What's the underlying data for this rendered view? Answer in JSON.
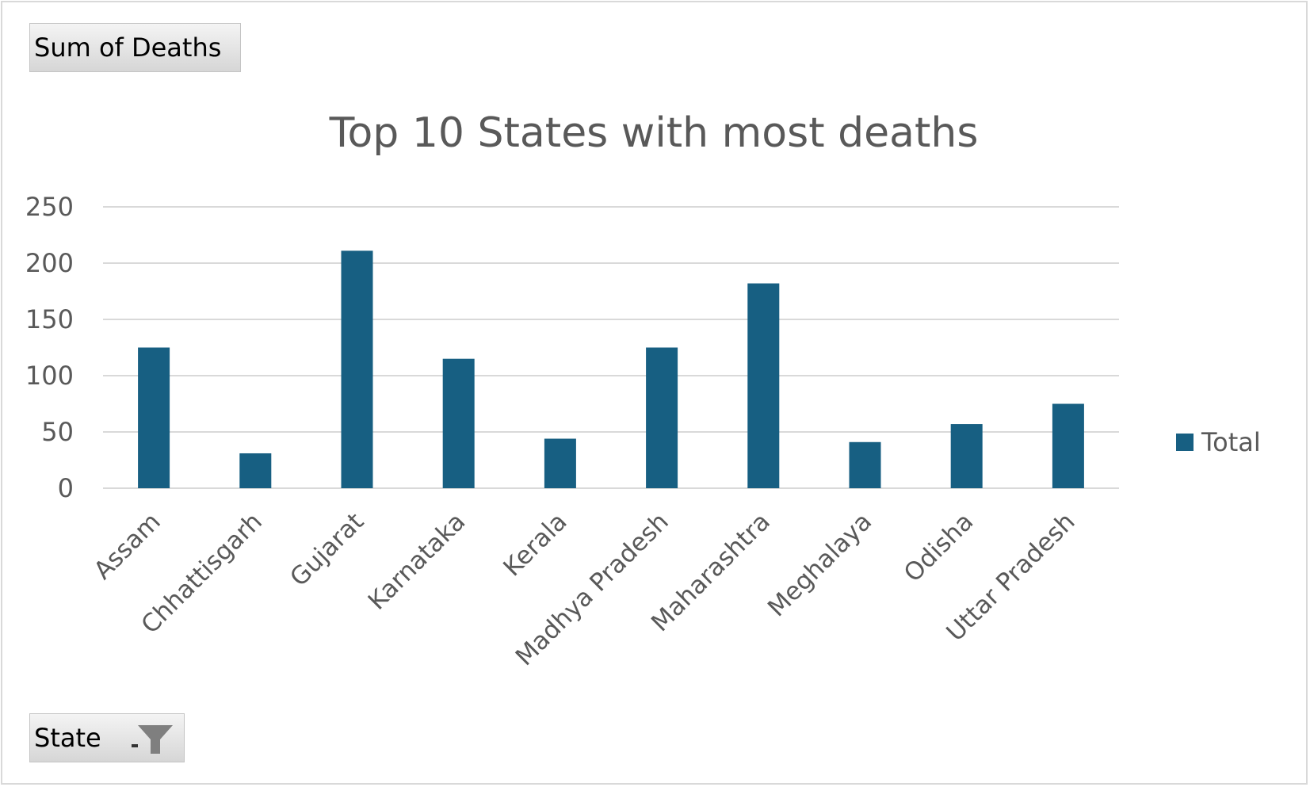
{
  "buttons": {
    "values_field": "Sum of Deaths",
    "axis_field": "State"
  },
  "colors": {
    "bar": "#175f82",
    "gridline": "#d9d9d9",
    "text": "#595959",
    "filter_icon": "#7f7f7f"
  },
  "icons": {
    "filter": "filter-funnel-icon",
    "dropdown": "dropdown-arrow-icon"
  },
  "chart_data": {
    "type": "bar",
    "title": "Top 10 States with most deaths",
    "xlabel": "",
    "ylabel": "",
    "categories": [
      "Assam",
      "Chhattisgarh",
      "Gujarat",
      "Karnataka",
      "Kerala",
      "Madhya Pradesh",
      "Maharashtra",
      "Meghalaya",
      "Odisha",
      "Uttar Pradesh"
    ],
    "series": [
      {
        "name": "Total",
        "values": [
          125,
          31,
          211,
          115,
          44,
          125,
          182,
          41,
          57,
          75
        ]
      }
    ],
    "ylim": [
      0,
      250
    ],
    "yticks": [
      0,
      50,
      100,
      150,
      200,
      250
    ],
    "grid": true,
    "legend": "right"
  }
}
